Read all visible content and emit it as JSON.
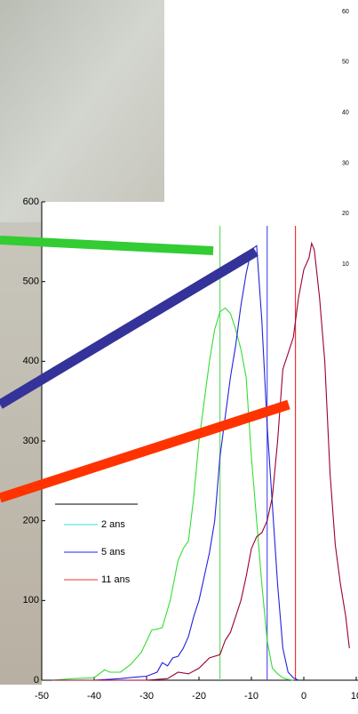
{
  "chart_data": {
    "type": "line",
    "xlim": [
      -50,
      10
    ],
    "xticks": [
      -50,
      -40,
      -30,
      -20,
      -10,
      0,
      10
    ],
    "ylim": [
      0,
      600
    ],
    "yticks": [
      0,
      100,
      200,
      300,
      400,
      500,
      600
    ],
    "series": [
      {
        "name": "2 ans",
        "color": "#33dd33",
        "legend_color": "#33dddd",
        "x": [
          -48,
          -44,
          -40,
          -38,
          -37,
          -35,
          -33,
          -31,
          -29,
          -28,
          -27,
          -25.5,
          -24,
          -23,
          -22,
          -21,
          -20,
          -19,
          -18,
          -17,
          -16,
          -15,
          -14,
          -13,
          -12,
          -11,
          -10,
          -9,
          -8,
          -7,
          -6,
          -5,
          -4,
          -3,
          -2
        ],
        "values": [
          0,
          2,
          3,
          13,
          10,
          10,
          20,
          35,
          63,
          64,
          66,
          100,
          150,
          165,
          175,
          230,
          300,
          350,
          400,
          440,
          462,
          467,
          460,
          440,
          415,
          380,
          280,
          200,
          120,
          50,
          15,
          8,
          3,
          1,
          0
        ]
      },
      {
        "name": "5 ans",
        "color": "#2222dd",
        "legend_color": "#2222ee",
        "x": [
          -48,
          -40,
          -35,
          -32,
          -30,
          -28,
          -27,
          -26,
          -25,
          -24,
          -23,
          -22,
          -21,
          -20,
          -19,
          -18,
          -17,
          -16,
          -15,
          -14,
          -13,
          -12,
          -11,
          -10,
          -9,
          -8,
          -7,
          -6,
          -5,
          -4,
          -3,
          -2,
          -1
        ],
        "values": [
          0,
          0,
          2,
          4,
          5,
          10,
          22,
          18,
          28,
          30,
          40,
          55,
          80,
          100,
          130,
          160,
          200,
          280,
          330,
          380,
          420,
          470,
          510,
          540,
          545,
          450,
          320,
          220,
          120,
          40,
          10,
          3,
          0
        ]
      },
      {
        "name": "11 ans",
        "color": "#990033",
        "legend_color": "#ee3333",
        "x": [
          -48,
          -40,
          -30,
          -26,
          -24,
          -22,
          -20,
          -18,
          -16,
          -15,
          -14,
          -13,
          -12,
          -11,
          -10,
          -9,
          -8,
          -7,
          -6,
          -5,
          -4,
          -3,
          -2,
          -1,
          0,
          1,
          1.5,
          2,
          3,
          4,
          5,
          6,
          7,
          8,
          8.7
        ],
        "values": [
          0,
          0,
          0,
          2,
          10,
          8,
          15,
          28,
          32,
          50,
          60,
          80,
          100,
          130,
          165,
          180,
          185,
          200,
          230,
          300,
          390,
          410,
          430,
          480,
          515,
          530,
          548,
          540,
          480,
          400,
          260,
          170,
          120,
          80,
          40
        ]
      }
    ],
    "vlines": [
      {
        "value": -16,
        "color": "#66dd66"
      },
      {
        "value": -7,
        "color": "#5555ee"
      },
      {
        "value": -1.6,
        "color": "#ee3333"
      }
    ]
  },
  "background_chart": {
    "ylim": [
      0,
      60
    ],
    "yticks": [
      10,
      20,
      30,
      40,
      50,
      60
    ]
  }
}
